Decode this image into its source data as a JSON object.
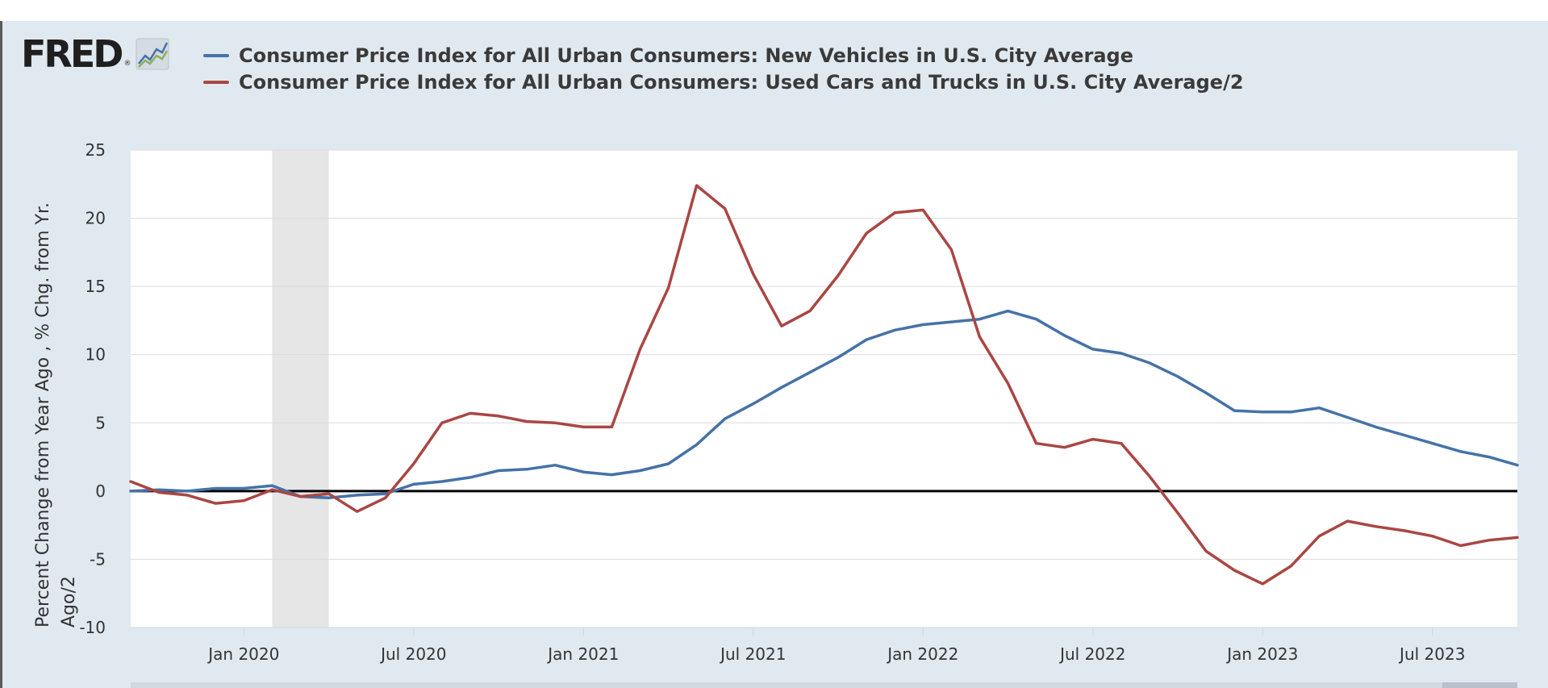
{
  "logo": {
    "text": "FRED",
    "reg": "®"
  },
  "chart_data": {
    "type": "line",
    "title": "",
    "ylabel_lines": [
      "Percent Change from Year Ago , % Chg. from Yr.",
      "Ago/2"
    ],
    "xlabel": "",
    "ylim": [
      -10,
      25
    ],
    "yticks": [
      25,
      20,
      15,
      10,
      5,
      0,
      -5,
      -10
    ],
    "x_start": "2019-09",
    "x_end": "2023-10",
    "xticks": [
      {
        "label": "Jan 2020",
        "date": "2020-01"
      },
      {
        "label": "Jul 2020",
        "date": "2020-07"
      },
      {
        "label": "Jan 2021",
        "date": "2021-01"
      },
      {
        "label": "Jul 2021",
        "date": "2021-07"
      },
      {
        "label": "Jan 2022",
        "date": "2022-01"
      },
      {
        "label": "Jul 2022",
        "date": "2022-07"
      },
      {
        "label": "Jan 2023",
        "date": "2023-01"
      },
      {
        "label": "Jul 2023",
        "date": "2023-07"
      }
    ],
    "recession": {
      "start": "2020-02",
      "end": "2020-04"
    },
    "zero_line": true,
    "grid": true,
    "legend_position": "top-left",
    "series": [
      {
        "name": "Consumer Price Index for All Urban Consumers: New Vehicles in U.S. City Average",
        "color": "#4572a7",
        "dates": [
          "2019-09",
          "2019-10",
          "2019-11",
          "2019-12",
          "2020-01",
          "2020-02",
          "2020-03",
          "2020-04",
          "2020-05",
          "2020-06",
          "2020-07",
          "2020-08",
          "2020-09",
          "2020-10",
          "2020-11",
          "2020-12",
          "2021-01",
          "2021-02",
          "2021-03",
          "2021-04",
          "2021-05",
          "2021-06",
          "2021-07",
          "2021-08",
          "2021-09",
          "2021-10",
          "2021-11",
          "2021-12",
          "2022-01",
          "2022-02",
          "2022-03",
          "2022-04",
          "2022-05",
          "2022-06",
          "2022-07",
          "2022-08",
          "2022-09",
          "2022-10",
          "2022-11",
          "2022-12",
          "2023-01",
          "2023-02",
          "2023-03",
          "2023-04",
          "2023-05",
          "2023-06",
          "2023-07",
          "2023-08",
          "2023-09",
          "2023-10"
        ],
        "values": [
          0.0,
          0.1,
          0.0,
          0.2,
          0.2,
          0.4,
          -0.4,
          -0.5,
          -0.3,
          -0.2,
          0.5,
          0.7,
          1.0,
          1.5,
          1.6,
          1.9,
          1.4,
          1.2,
          1.5,
          2.0,
          3.4,
          5.3,
          6.4,
          7.6,
          8.7,
          9.8,
          11.1,
          11.8,
          12.2,
          12.4,
          12.6,
          13.2,
          12.6,
          11.4,
          10.4,
          10.1,
          9.4,
          8.4,
          7.2,
          5.9,
          5.8,
          5.8,
          6.1,
          5.4,
          4.7,
          4.1,
          3.5,
          2.9,
          2.5,
          1.9
        ]
      },
      {
        "name": "Consumer Price Index for All Urban Consumers: Used Cars and Trucks in U.S. City Average/2",
        "color": "#aa4643",
        "dates": [
          "2019-09",
          "2019-10",
          "2019-11",
          "2019-12",
          "2020-01",
          "2020-02",
          "2020-03",
          "2020-04",
          "2020-05",
          "2020-06",
          "2020-07",
          "2020-08",
          "2020-09",
          "2020-10",
          "2020-11",
          "2020-12",
          "2021-01",
          "2021-02",
          "2021-03",
          "2021-04",
          "2021-05",
          "2021-06",
          "2021-07",
          "2021-08",
          "2021-09",
          "2021-10",
          "2021-11",
          "2021-12",
          "2022-01",
          "2022-02",
          "2022-03",
          "2022-04",
          "2022-05",
          "2022-06",
          "2022-07",
          "2022-08",
          "2022-09",
          "2022-10",
          "2022-11",
          "2022-12",
          "2023-01",
          "2023-02",
          "2023-03",
          "2023-04",
          "2023-05",
          "2023-06",
          "2023-07",
          "2023-08",
          "2023-09",
          "2023-10"
        ],
        "values": [
          0.7,
          -0.1,
          -0.3,
          -0.9,
          -0.7,
          0.1,
          -0.4,
          -0.2,
          -1.5,
          -0.5,
          2.0,
          5.0,
          5.7,
          5.5,
          5.1,
          5.0,
          4.7,
          4.7,
          10.4,
          14.9,
          22.4,
          20.7,
          15.9,
          12.1,
          13.2,
          15.8,
          18.9,
          20.4,
          20.6,
          17.7,
          11.3,
          7.9,
          3.5,
          3.2,
          3.8,
          3.5,
          1.1,
          -1.6,
          -4.4,
          -5.8,
          -6.8,
          -5.5,
          -3.3,
          -2.2,
          -2.6,
          -2.9,
          -3.3,
          -4.0,
          -3.6,
          -3.4
        ]
      }
    ]
  }
}
